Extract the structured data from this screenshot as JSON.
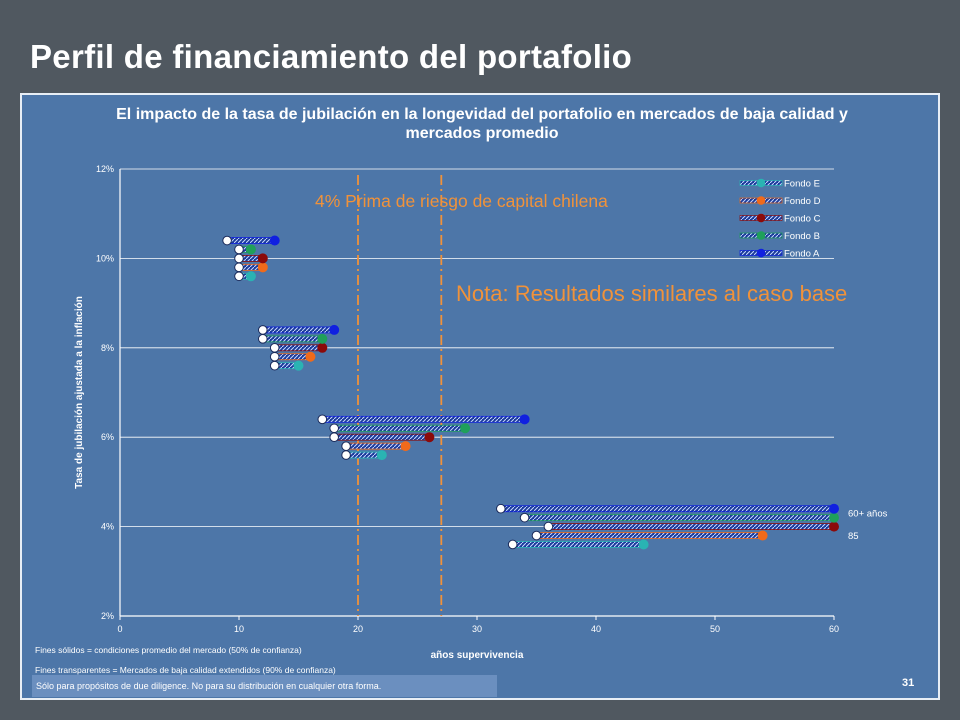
{
  "slide": {
    "title": "Perfil de financiamiento del portafolio",
    "page_number": "31"
  },
  "notes": {
    "premium": "4% Prima de riesgo de capital chilena",
    "result": "Nota: Resultados similares al caso base"
  },
  "footnotes": {
    "solid": "Fines sólidos = condiciones promedio del mercado (50% de confianza)",
    "transparent": "Fines transparentes = Mercados de baja calidad extendidos (90% de confianza)",
    "disclaimer": "Sólo para propósitos de due diligence. No para su distribución en cualquier otra forma."
  },
  "colors": {
    "background": "#505860",
    "panel": "#4d76a8",
    "note": "#f0923a",
    "grid": "#ffffff"
  },
  "chart_data": {
    "type": "scatter",
    "title": "El impacto de la tasa de jubilación en la longevidad del portafolio en mercados de baja calidad y mercados promedio",
    "xlabel": "años supervivencia",
    "ylabel": "Tasa de jubilación ajustada a la inflación",
    "xlim": [
      0,
      60
    ],
    "ylim": [
      2,
      12
    ],
    "x_ticks": [
      "0",
      "10",
      "20",
      "30",
      "40",
      "50",
      "60"
    ],
    "y_ticks": [
      "2%",
      "4%",
      "6%",
      "8%",
      "10%",
      "12%"
    ],
    "grid": "horizontal",
    "legend_position": "top-right",
    "reference_lines_x": [
      20,
      27
    ],
    "series": [
      {
        "name": "Fondo E",
        "color": "#2ab3b3",
        "points": [
          {
            "rate": 9.6,
            "low": 10,
            "avg": 11
          },
          {
            "rate": 7.6,
            "low": 13,
            "avg": 15
          },
          {
            "rate": 5.6,
            "low": 19,
            "avg": 22
          },
          {
            "rate": 3.6,
            "low": 33,
            "avg": 44
          }
        ]
      },
      {
        "name": "Fondo D",
        "color": "#f06a1a",
        "points": [
          {
            "rate": 9.8,
            "low": 10,
            "avg": 12
          },
          {
            "rate": 7.8,
            "low": 13,
            "avg": 16
          },
          {
            "rate": 5.8,
            "low": 19,
            "avg": 24
          },
          {
            "rate": 3.8,
            "low": 35,
            "avg": 54
          }
        ]
      },
      {
        "name": "Fondo C",
        "color": "#8b0a0a",
        "points": [
          {
            "rate": 10.0,
            "low": 10,
            "avg": 12
          },
          {
            "rate": 8.0,
            "low": 13,
            "avg": 17
          },
          {
            "rate": 6.0,
            "low": 18,
            "avg": 26
          },
          {
            "rate": 4.0,
            "low": 36,
            "avg": 60
          }
        ]
      },
      {
        "name": "Fondo B",
        "color": "#1fa05a",
        "points": [
          {
            "rate": 10.2,
            "low": 10,
            "avg": 11
          },
          {
            "rate": 8.2,
            "low": 12,
            "avg": 17
          },
          {
            "rate": 6.2,
            "low": 18,
            "avg": 29
          },
          {
            "rate": 4.2,
            "low": 34,
            "avg": 60
          }
        ]
      },
      {
        "name": "Fondo A",
        "color": "#1020e0",
        "points": [
          {
            "rate": 10.4,
            "low": 9,
            "avg": 13
          },
          {
            "rate": 8.4,
            "low": 12,
            "avg": 18
          },
          {
            "rate": 6.4,
            "low": 17,
            "avg": 34
          },
          {
            "rate": 4.4,
            "low": 32,
            "avg": 60
          }
        ]
      }
    ],
    "annotations": [
      {
        "text": "60+ años",
        "x": 60,
        "y": 4.4
      },
      {
        "text": "85",
        "x": 60,
        "y": 3.9
      }
    ]
  }
}
